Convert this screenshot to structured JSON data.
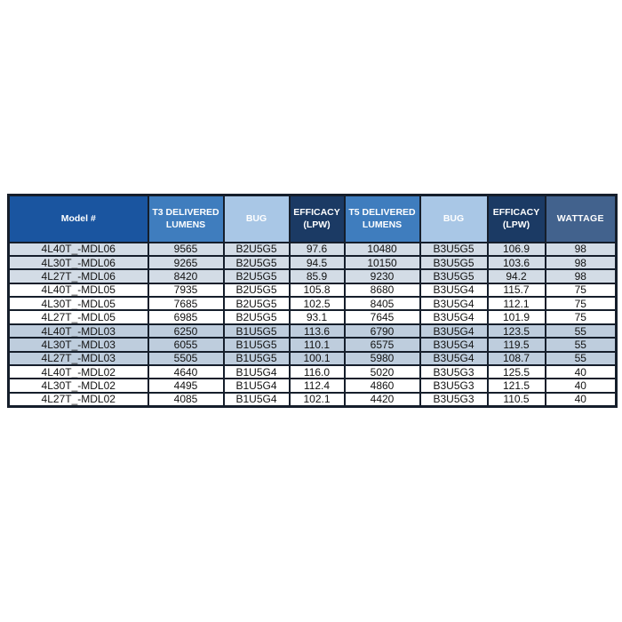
{
  "table": {
    "columns": [
      {
        "key": "model",
        "label": "Model #"
      },
      {
        "key": "t3-lumens",
        "label": "T3 DELIVERED LUMENS"
      },
      {
        "key": "t3-bug",
        "label": "BUG"
      },
      {
        "key": "t3-efficacy",
        "label": "EFFICACY (LPW)"
      },
      {
        "key": "t5-lumens",
        "label": "T5 DELIVERED LUMENS"
      },
      {
        "key": "t5-bug",
        "label": "BUG"
      },
      {
        "key": "t5-efficacy",
        "label": "EFFICACY (LPW)"
      },
      {
        "key": "wattage",
        "label": "WATTAGE"
      }
    ],
    "rows": [
      {
        "band": "light",
        "cells": [
          "4L40T_-MDL06",
          "9565",
          "B2U5G5",
          "97.6",
          "10480",
          "B3U5G5",
          "106.9",
          "98"
        ]
      },
      {
        "band": "light",
        "cells": [
          "4L30T_-MDL06",
          "9265",
          "B2U5G5",
          "94.5",
          "10150",
          "B3U5G5",
          "103.6",
          "98"
        ]
      },
      {
        "band": "light",
        "cells": [
          "4L27T_-MDL06",
          "8420",
          "B2U5G5",
          "85.9",
          "9230",
          "B3U5G5",
          "94.2",
          "98"
        ]
      },
      {
        "band": "white",
        "cells": [
          "4L40T_-MDL05",
          "7935",
          "B2U5G5",
          "105.8",
          "8680",
          "B3U5G4",
          "115.7",
          "75"
        ]
      },
      {
        "band": "white",
        "cells": [
          "4L30T_-MDL05",
          "7685",
          "B2U5G5",
          "102.5",
          "8405",
          "B3U5G4",
          "112.1",
          "75"
        ]
      },
      {
        "band": "white",
        "cells": [
          "4L27T_-MDL05",
          "6985",
          "B2U5G5",
          "93.1",
          "7645",
          "B3U5G4",
          "101.9",
          "75"
        ]
      },
      {
        "band": "mid",
        "cells": [
          "4L40T_-MDL03",
          "6250",
          "B1U5G5",
          "113.6",
          "6790",
          "B3U5G4",
          "123.5",
          "55"
        ]
      },
      {
        "band": "mid",
        "cells": [
          "4L30T_-MDL03",
          "6055",
          "B1U5G5",
          "110.1",
          "6575",
          "B3U5G4",
          "119.5",
          "55"
        ]
      },
      {
        "band": "mid",
        "cells": [
          "4L27T_-MDL03",
          "5505",
          "B1U5G5",
          "100.1",
          "5980",
          "B3U5G4",
          "108.7",
          "55"
        ]
      },
      {
        "band": "white",
        "cells": [
          "4L40T_-MDL02",
          "4640",
          "B1U5G4",
          "116.0",
          "5020",
          "B3U5G3",
          "125.5",
          "40"
        ]
      },
      {
        "band": "white",
        "cells": [
          "4L30T_-MDL02",
          "4495",
          "B1U5G4",
          "112.4",
          "4860",
          "B3U5G3",
          "121.5",
          "40"
        ]
      },
      {
        "band": "white",
        "cells": [
          "4L27T_-MDL02",
          "4085",
          "B1U5G4",
          "102.1",
          "4420",
          "B3U5G3",
          "110.5",
          "40"
        ]
      }
    ]
  },
  "colors": {
    "header_model_bg": "#1A55A0",
    "header_lumens_bg": "#3F7DBE",
    "header_bug_bg": "#A9C7E6",
    "header_bug_text": "#1A3A5F",
    "header_efficacy_bg": "#1B3A64",
    "header_wattage_bg": "#42628D",
    "band_light": "#D3DCE6",
    "band_mid": "#BECDDD",
    "band_white": "#FFFFFF",
    "border": "#151E2B",
    "data_text": "#121212"
  }
}
